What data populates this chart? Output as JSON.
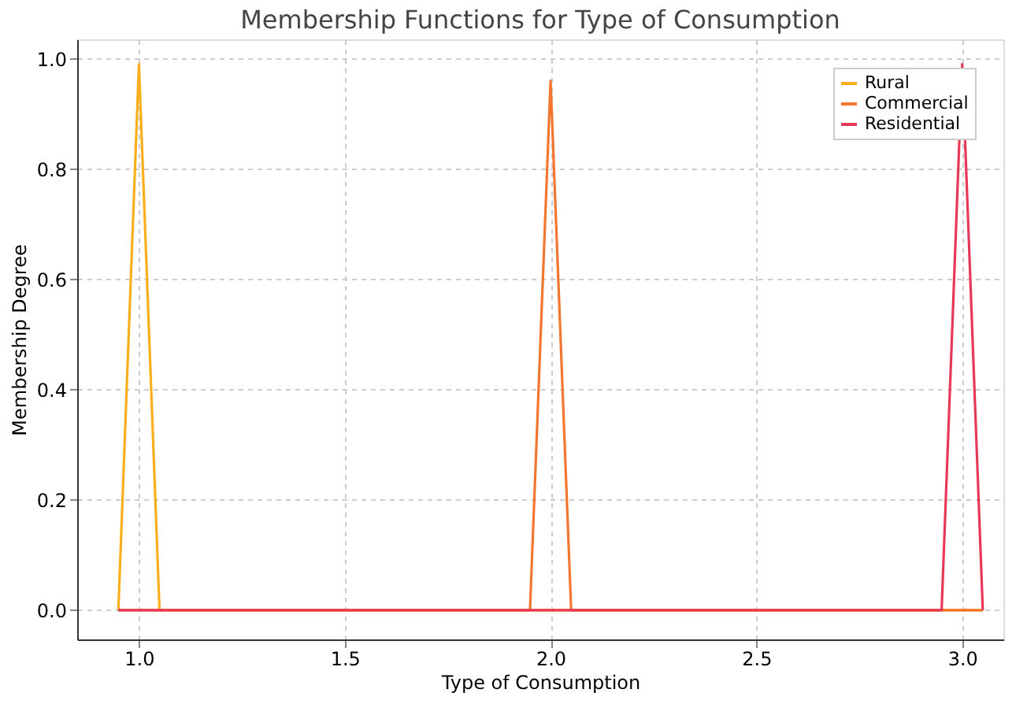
{
  "chart_data": {
    "type": "line",
    "title": "Membership Functions for Type of Consumption",
    "xlabel": "Type of Consumption",
    "ylabel": "Membership Degree",
    "series": [
      {
        "name": "Rural",
        "color": "#f9ae1c",
        "x": [
          0.95,
          1.0,
          1.05,
          3.05
        ],
        "values": [
          0,
          0.99,
          0,
          0
        ]
      },
      {
        "name": "Commercial",
        "color": "#f2762e",
        "x": [
          0.95,
          1.95,
          2.0,
          2.05,
          3.05
        ],
        "values": [
          0,
          0,
          0.96,
          0,
          0
        ]
      },
      {
        "name": "Residential",
        "color": "#e8385a",
        "x": [
          0.95,
          2.95,
          3.0,
          3.05
        ],
        "values": [
          0,
          0,
          0.99,
          0
        ]
      }
    ],
    "xlim": [
      0.85,
      3.1
    ],
    "ylim": [
      -0.053,
      1.035
    ],
    "xticks": [
      {
        "value": 1,
        "label": "1.0"
      },
      1.5,
      {
        "value": 2,
        "label": "2.0"
      },
      2.5,
      {
        "value": 3,
        "label": "3.0"
      }
    ],
    "yticks": [
      {
        "value": 0,
        "label": "0.0"
      },
      0.2,
      0.4,
      0.6,
      0.8,
      {
        "value": 1,
        "label": "1.0"
      }
    ],
    "grid": true,
    "legend": "top right",
    "line_style": "solid",
    "marker": "none"
  }
}
